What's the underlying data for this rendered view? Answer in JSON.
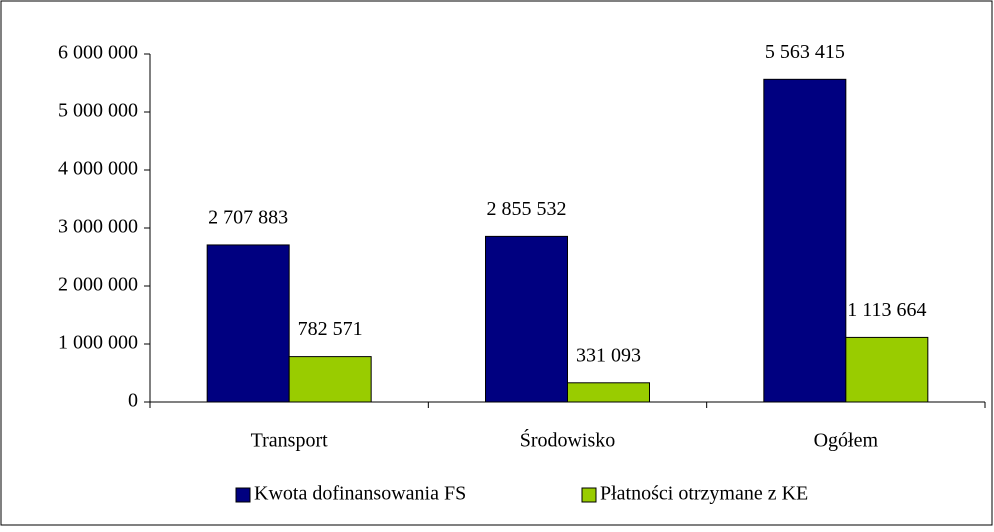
{
  "chart_data": {
    "type": "bar",
    "categories": [
      "Transport",
      "Środowisko",
      "Ogółem"
    ],
    "series": [
      {
        "name": "Kwota dofinansowania FS",
        "color": "#000080",
        "values": [
          2707883,
          2855532,
          5563415
        ],
        "value_labels": [
          "2 707 883",
          "2 855 532",
          "5 563 415"
        ]
      },
      {
        "name": "Płatności otrzymane z KE",
        "color": "#99cc00",
        "values": [
          782571,
          331093,
          1113664
        ],
        "value_labels": [
          "782 571",
          "331 093",
          "1 113 664"
        ]
      }
    ],
    "ylim": [
      0,
      6000000
    ],
    "yticks": [
      {
        "value": 0,
        "label": "0"
      },
      {
        "value": 1000000,
        "label": "1 000 000"
      },
      {
        "value": 2000000,
        "label": "2 000 000"
      },
      {
        "value": 3000000,
        "label": "3 000 000"
      },
      {
        "value": 4000000,
        "label": "4 000 000"
      },
      {
        "value": 5000000,
        "label": "5 000 000"
      },
      {
        "value": 6000000,
        "label": "6 000 000"
      }
    ],
    "legend": "bottom"
  }
}
